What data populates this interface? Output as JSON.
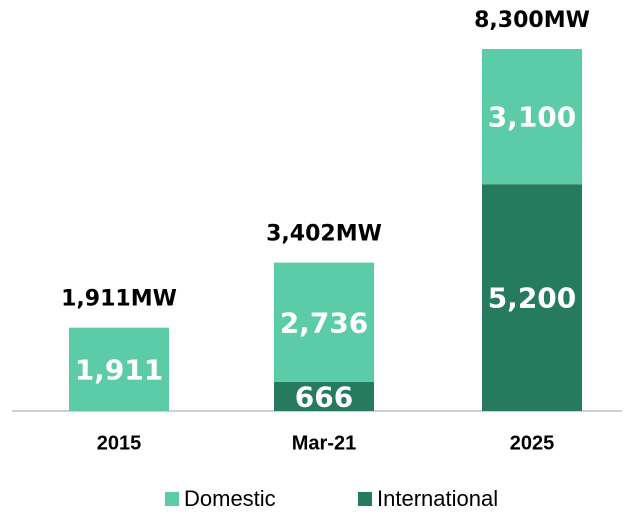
{
  "chart_data": {
    "type": "stacked_bar",
    "categories": [
      "2015",
      "Mar-21",
      "2025"
    ],
    "series": [
      {
        "name": "International",
        "color": "#267a5e",
        "values": [
          null,
          666,
          5200
        ],
        "value_labels": [
          null,
          "666",
          "5,200"
        ]
      },
      {
        "name": "Domestic",
        "color": "#5ccca8",
        "values": [
          1911,
          2736,
          3100
        ],
        "value_labels": [
          "1,911",
          "2,736",
          "3,100"
        ]
      }
    ],
    "annotations": [
      "1,911MW",
      "3,402MW",
      "8,300MW"
    ],
    "legend": "bottom"
  }
}
